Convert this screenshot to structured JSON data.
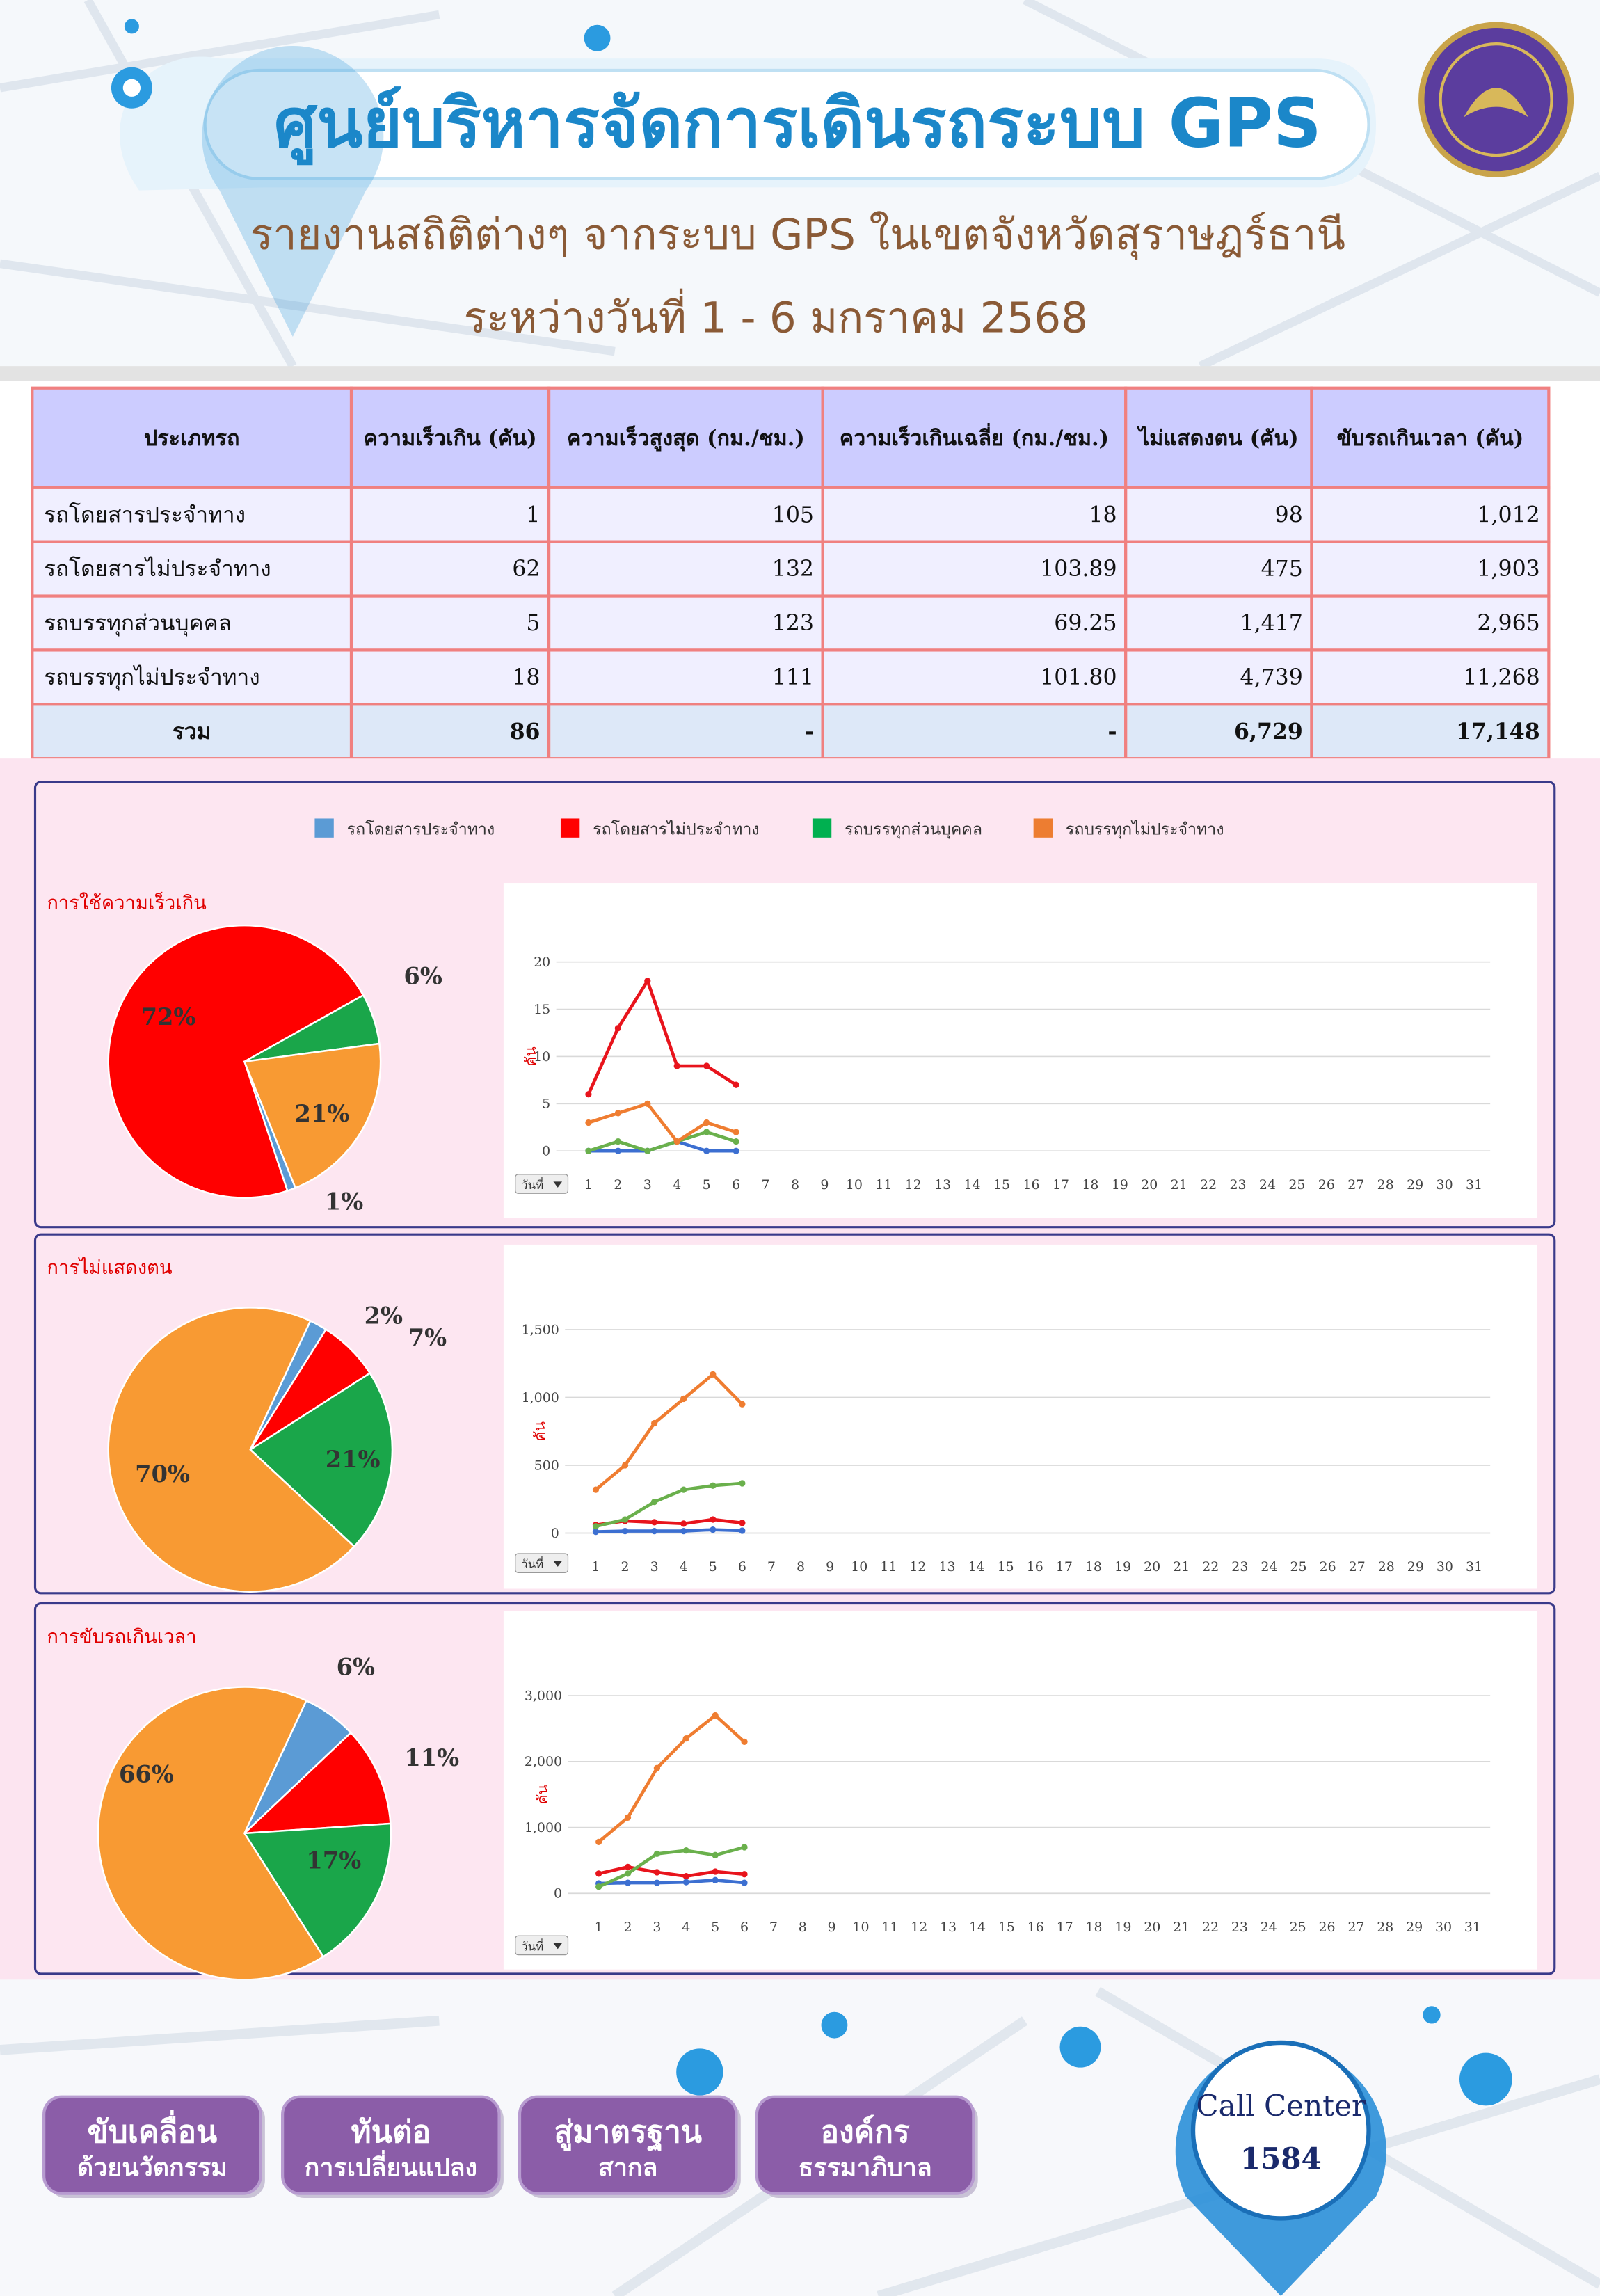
{
  "header": {
    "title": "ศูนย์บริหารจัดการเดินรถระบบ GPS",
    "subtitle": "รายงานสถิติต่างๆ จากระบบ GPS ในเขตจังหวัดสุราษฎร์ธานี",
    "period": "ระหว่างวันที่  1 - 6 มกราคม 2568"
  },
  "table": {
    "columns": [
      "ประเภทรถ",
      "ความเร็วเกิน (คัน)",
      "ความเร็วสูงสุด (กม./ชม.)",
      "ความเร็วเกินเฉลี่ย (กม./ชม.)",
      "ไม่แสดงตน (คัน)",
      "ขับรถเกินเวลา (คัน)"
    ],
    "rows": [
      [
        "รถโดยสารประจำทาง",
        "1",
        "105",
        "18",
        "98",
        "1,012"
      ],
      [
        "รถโดยสารไม่ประจำทาง",
        "62",
        "132",
        "103.89",
        "475",
        "1,903"
      ],
      [
        "รถบรรทุกส่วนบุคคล",
        "5",
        "123",
        "69.25",
        "1,417",
        "2,965"
      ],
      [
        "รถบรรทุกไม่ประจำทาง",
        "18",
        "111",
        "101.80",
        "4,739",
        "11,268"
      ]
    ],
    "total": [
      "รวม",
      "86",
      "-",
      "-",
      "6,729",
      "17,148"
    ]
  },
  "legend": {
    "items": [
      {
        "name": "รถโดยสารประจำทาง",
        "color": "#5b9bd5"
      },
      {
        "name": "รถโดยสารไม่ประจำทาง",
        "color": "#ff0000"
      },
      {
        "name": "รถบรรทุกส่วนบุคคล",
        "color": "#00b050"
      },
      {
        "name": "รถบรรทุกไม่ประจำทาง",
        "color": "#ed7d31"
      }
    ]
  },
  "chart_data": [
    {
      "type": "pie",
      "title": "การใช้ความเร็วเกิน",
      "colors": [
        "#5b9bd5",
        "#ff0000",
        "#1aa64a",
        "#f89a33"
      ],
      "values": [
        1,
        72,
        6,
        21
      ],
      "value_labels": [
        "1%",
        "72%",
        "6%",
        "21%"
      ]
    },
    {
      "type": "line",
      "y_label": "คัน",
      "x_label": "วันที่",
      "x": [
        1,
        2,
        3,
        4,
        5,
        6
      ],
      "xlim": [
        1,
        31
      ],
      "xticks": [
        1,
        2,
        3,
        4,
        5,
        6,
        7,
        8,
        9,
        10,
        11,
        12,
        13,
        14,
        15,
        16,
        17,
        18,
        19,
        20,
        21,
        22,
        23,
        24,
        25,
        26,
        27,
        28,
        29,
        30,
        31
      ],
      "ylim": [
        0,
        20
      ],
      "yticks": [
        0,
        5,
        10,
        15,
        20
      ],
      "grid": true,
      "series": [
        {
          "color": "#3c6fd1",
          "values": [
            0,
            0,
            0,
            1,
            0,
            0
          ]
        },
        {
          "color": "#e8141c",
          "values": [
            6,
            13,
            18,
            9,
            9,
            7
          ]
        },
        {
          "color": "#6ab04c",
          "values": [
            0,
            1,
            0,
            1,
            2,
            1
          ]
        },
        {
          "color": "#ef7d31",
          "values": [
            3,
            4,
            5,
            1,
            3,
            2
          ]
        }
      ]
    },
    {
      "type": "pie",
      "title": "การไม่แสดงตน",
      "colors": [
        "#5b9bd5",
        "#ff0000",
        "#1aa64a",
        "#f89a33"
      ],
      "values": [
        2,
        7,
        21,
        70
      ],
      "value_labels": [
        "2%",
        "7%",
        "21%",
        "70%"
      ]
    },
    {
      "type": "line",
      "y_label": "คัน",
      "x_label": "วันที่",
      "x": [
        1,
        2,
        3,
        4,
        5,
        6
      ],
      "xlim": [
        1,
        31
      ],
      "xticks": [
        1,
        2,
        3,
        4,
        5,
        6,
        7,
        8,
        9,
        10,
        11,
        12,
        13,
        14,
        15,
        16,
        17,
        18,
        19,
        20,
        21,
        22,
        23,
        24,
        25,
        26,
        27,
        28,
        29,
        30,
        31
      ],
      "ylim": [
        0,
        1500
      ],
      "yticks": [
        0,
        500,
        {
          "value": 1000,
          "label": "1,000"
        },
        {
          "value": 1500,
          "label": "1,500"
        }
      ],
      "grid": true,
      "series": [
        {
          "color": "#3c6fd1",
          "values": [
            10,
            15,
            15,
            15,
            25,
            18
          ]
        },
        {
          "color": "#e8141c",
          "values": [
            60,
            90,
            80,
            70,
            100,
            75
          ]
        },
        {
          "color": "#6ab04c",
          "values": [
            50,
            100,
            230,
            320,
            350,
            367
          ]
        },
        {
          "color": "#ef7d31",
          "values": [
            320,
            500,
            810,
            990,
            1170,
            950
          ]
        }
      ]
    },
    {
      "type": "pie",
      "title": "การขับรถเกินเวลา",
      "colors": [
        "#5b9bd5",
        "#ff0000",
        "#1aa64a",
        "#f89a33"
      ],
      "values": [
        6,
        11,
        17,
        66
      ],
      "value_labels": [
        "6%",
        "11%",
        "17%",
        "66%"
      ]
    },
    {
      "type": "line",
      "y_label": "คัน",
      "x_label": "วันที่",
      "x": [
        1,
        2,
        3,
        4,
        5,
        6
      ],
      "xlim": [
        1,
        31
      ],
      "xticks": [
        1,
        2,
        3,
        4,
        5,
        6,
        7,
        8,
        9,
        10,
        11,
        12,
        13,
        14,
        15,
        16,
        17,
        18,
        19,
        20,
        21,
        22,
        23,
        24,
        25,
        26,
        27,
        28,
        29,
        30,
        31
      ],
      "ylim": [
        0,
        3000
      ],
      "yticks": [
        0,
        {
          "value": 1000,
          "label": "1,000"
        },
        {
          "value": 2000,
          "label": "2,000"
        },
        {
          "value": 3000,
          "label": "3,000"
        }
      ],
      "grid": true,
      "series": [
        {
          "color": "#3c6fd1",
          "values": [
            150,
            160,
            160,
            170,
            200,
            160
          ]
        },
        {
          "color": "#e8141c",
          "values": [
            300,
            400,
            320,
            260,
            330,
            290
          ]
        },
        {
          "color": "#6ab04c",
          "values": [
            100,
            300,
            600,
            650,
            580,
            700
          ]
        },
        {
          "color": "#ef7d31",
          "values": [
            780,
            1150,
            1900,
            2350,
            2700,
            2300
          ]
        }
      ]
    }
  ],
  "footer": {
    "buttons": [
      [
        "ขับเคลื่อน",
        "ด้วยนวัตกรรม"
      ],
      [
        "ทันต่อ",
        "การเปลี่ยนแปลง"
      ],
      [
        "สู่มาตรฐาน",
        "สากล"
      ],
      [
        "องค์กร",
        "ธรรมาภิบาล"
      ]
    ],
    "call_center": "Call Center",
    "phone": "1584"
  }
}
